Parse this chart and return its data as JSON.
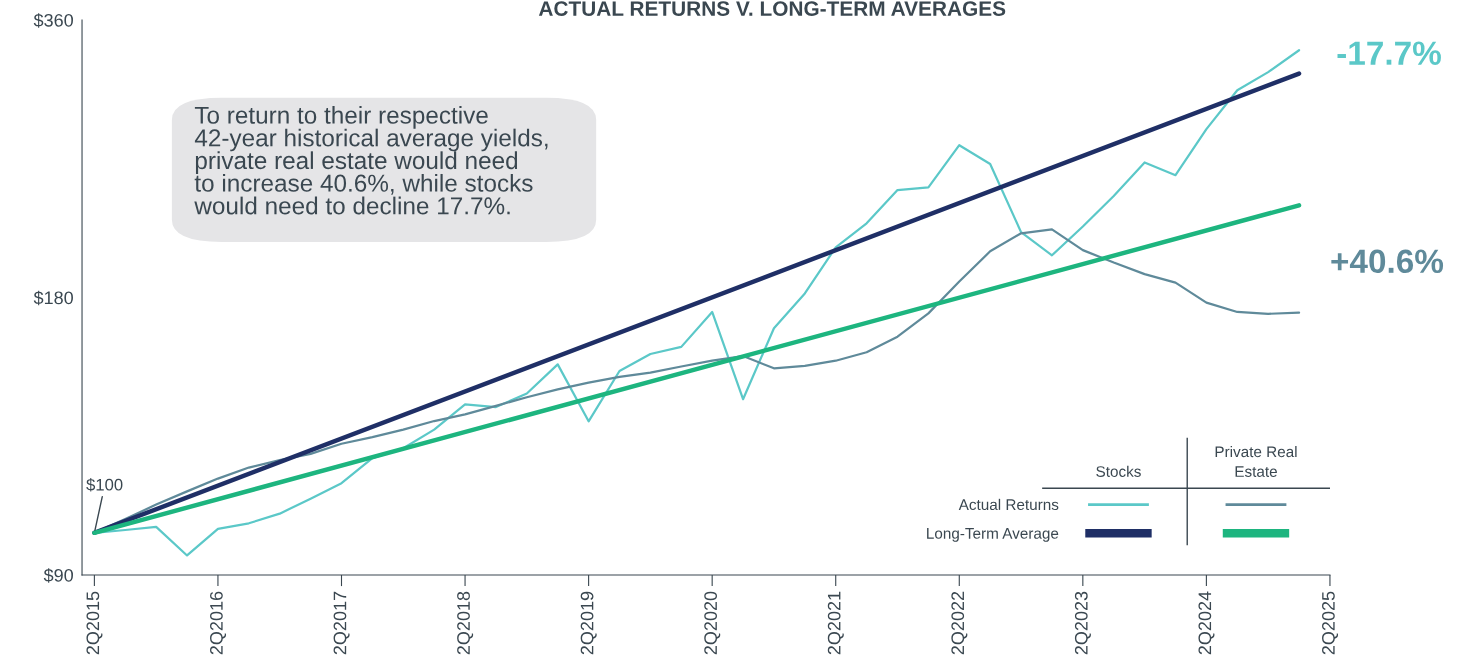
{
  "chart_data": {
    "type": "line",
    "title": "ACTUAL RETURNS V. LONG-TERM AVERAGES",
    "categories": [
      "2Q2015",
      null,
      null,
      null,
      "2Q2016",
      null,
      null,
      null,
      "2Q2017",
      null,
      null,
      null,
      "2Q2018",
      null,
      null,
      null,
      "2Q2019",
      null,
      null,
      null,
      "2Q2020",
      null,
      null,
      null,
      "2Q2021",
      null,
      null,
      null,
      "2Q2022",
      null,
      null,
      null,
      "2Q2023",
      null,
      null,
      null,
      "2Q2024",
      null,
      null,
      null,
      "2Q2025"
    ],
    "series": [
      {
        "name": "Actual Returns",
        "color": "#5bc8c8",
        "values": [
          100,
          100.7,
          101.5,
          94.5,
          101,
          102.4,
          104.9,
          108.9,
          113.2,
          120.5,
          123.5,
          129.4,
          137.8,
          136.9,
          141.6,
          152.3,
          132.1,
          149.8,
          156.3,
          159.1,
          173.6,
          139.6,
          166.7,
          181.8,
          204,
          216.6,
          235.4,
          237,
          263.3,
          251.2,
          211.9,
          200,
          214.9,
          231.9,
          252.2,
          244.3,
          274.1,
          302,
          316,
          333.8,
          null
        ]
      },
      {
        "color": "#5f8a9a",
        "values": [
          100,
          103.5,
          107.3,
          110.9,
          114.5,
          117.7,
          119.9,
          121.8,
          124.9,
          127,
          129.4,
          132.2,
          134.4,
          137.3,
          140.3,
          143.1,
          145.5,
          147.6,
          149.2,
          151.5,
          153.7,
          155.5,
          150.8,
          151.7,
          153.7,
          157,
          163.2,
          173,
          187.3,
          202,
          211.3,
          213.4,
          202.6,
          196.4,
          190.8,
          186.8,
          177.7,
          173.6,
          172.8,
          173.3,
          null
        ]
      },
      {
        "name": "Long-Term Average",
        "color": "#1f2f66",
        "values": [
          100,
          null,
          null,
          null,
          null,
          null,
          null,
          null,
          null,
          null,
          null,
          null,
          null,
          null,
          null,
          null,
          null,
          null,
          null,
          null,
          null,
          null,
          null,
          null,
          null,
          null,
          null,
          null,
          null,
          null,
          null,
          null,
          null,
          null,
          null,
          null,
          null,
          null,
          null,
          314.9,
          null
        ]
      },
      {
        "color": "#1db57f",
        "values": [
          100,
          null,
          null,
          null,
          null,
          null,
          null,
          null,
          null,
          null,
          null,
          null,
          null,
          null,
          null,
          null,
          null,
          null,
          null,
          null,
          null,
          null,
          null,
          null,
          null,
          null,
          null,
          null,
          null,
          null,
          null,
          null,
          null,
          null,
          null,
          null,
          null,
          null,
          null,
          226.6,
          null
        ]
      }
    ],
    "log": true,
    "ylim": [
      90,
      360
    ],
    "yticks": [
      {
        "value": 90,
        "label": "$90"
      },
      {
        "value": 180,
        "label": "$180"
      },
      {
        "value": 360,
        "label": "$360"
      }
    ],
    "grid": false,
    "legend": "bottom right",
    "annotations": [
      "To return to their respective\n42-year historical average yields,\nprivate real estate would need\nto increase 40.6%, while stocks\nwould need to decline 17.7%.",
      {
        "text": "$100",
        "x": "2Q2015",
        "y": 100
      },
      "-17.7%",
      "+40.6%",
      "Stocks",
      "Private Real Estate"
    ]
  }
}
